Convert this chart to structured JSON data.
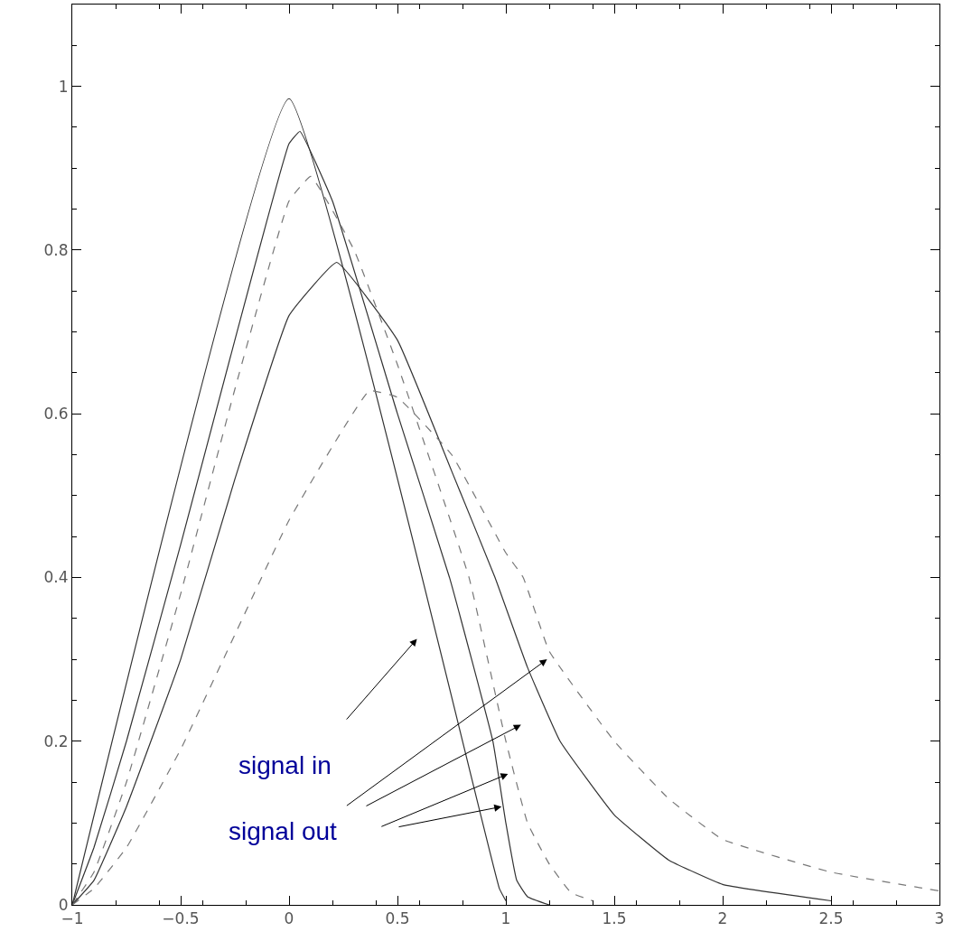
{
  "chart_data": {
    "type": "line",
    "xlim": [
      -1,
      3
    ],
    "ylim": [
      0,
      1.1
    ],
    "xticks": [
      -1,
      -0.5,
      0,
      0.5,
      1,
      1.5,
      2,
      2.5,
      3
    ],
    "yticks": [
      0,
      0.2,
      0.4,
      0.6,
      0.8,
      1
    ],
    "legend": false,
    "series": [
      {
        "color": "#333333",
        "line_style": "solid",
        "x": [
          -1,
          0,
          0.97,
          1.0
        ],
        "values": [
          0,
          0.985,
          0.02,
          0.005
        ]
      },
      {
        "color": "#333333",
        "line_style": "solid",
        "x": [
          -1,
          -0.9,
          -0.75,
          -0.5,
          -0.25,
          0,
          0.05,
          0.2,
          0.5,
          0.74,
          0.94,
          1.0,
          1.05,
          1.1,
          1.2
        ],
        "values": [
          0,
          0.07,
          0.2,
          0.44,
          0.69,
          0.93,
          0.945,
          0.86,
          0.6,
          0.4,
          0.2,
          0.1,
          0.03,
          0.01,
          0
        ]
      },
      {
        "color": "#777777",
        "line_style": "dashed",
        "x": [
          -1,
          -0.9,
          -0.75,
          -0.5,
          -0.25,
          0,
          0.1,
          0.3,
          0.5,
          0.83,
          1.0,
          1.1,
          1.2,
          1.3,
          1.4
        ],
        "values": [
          0,
          0.04,
          0.15,
          0.38,
          0.63,
          0.86,
          0.89,
          0.8,
          0.66,
          0.4,
          0.2,
          0.1,
          0.05,
          0.015,
          0.005
        ]
      },
      {
        "color": "#333333",
        "line_style": "solid",
        "x": [
          -1,
          -0.9,
          -0.75,
          -0.5,
          -0.25,
          0,
          0.22,
          0.5,
          0.75,
          0.95,
          1.1,
          1.25,
          1.5,
          1.75,
          2,
          2.5
        ],
        "values": [
          0,
          0.03,
          0.12,
          0.3,
          0.52,
          0.72,
          0.785,
          0.69,
          0.53,
          0.4,
          0.29,
          0.2,
          0.11,
          0.055,
          0.025,
          0.005
        ]
      },
      {
        "color": "#777777",
        "line_style": "dashed",
        "x": [
          -1,
          -0.9,
          -0.75,
          -0.5,
          -0.25,
          0,
          0.37,
          0.5,
          0.75,
          1.0,
          1.08,
          1.2,
          1.5,
          1.75,
          2,
          2.5,
          3
        ],
        "values": [
          0,
          0.02,
          0.07,
          0.19,
          0.33,
          0.47,
          0.628,
          0.62,
          0.55,
          0.43,
          0.4,
          0.31,
          0.2,
          0.13,
          0.08,
          0.04,
          0.017
        ]
      }
    ],
    "annotations": [
      "signal in",
      "signal out"
    ]
  }
}
